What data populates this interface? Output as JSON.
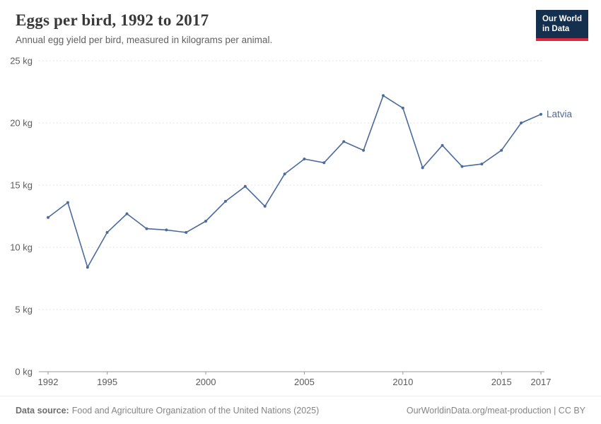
{
  "header": {
    "title": "Eggs per bird, 1992 to 2017",
    "subtitle": "Annual egg yield per bird, measured in kilograms per animal.",
    "logo_line1": "Our World",
    "logo_line2": "in Data"
  },
  "chart_data": {
    "type": "line",
    "title": "Eggs per bird, 1992 to 2017",
    "subtitle": "Annual egg yield per bird, measured in kilograms per animal.",
    "x": [
      1992,
      1993,
      1994,
      1995,
      1996,
      1997,
      1998,
      1999,
      2000,
      2001,
      2002,
      2003,
      2004,
      2005,
      2006,
      2007,
      2008,
      2009,
      2010,
      2011,
      2012,
      2013,
      2014,
      2015,
      2016,
      2017
    ],
    "series": [
      {
        "name": "Latvia",
        "color": "#4c6a9c",
        "values": [
          12.4,
          13.6,
          8.4,
          11.2,
          12.7,
          11.5,
          11.4,
          11.2,
          12.1,
          13.7,
          14.9,
          13.3,
          15.9,
          17.1,
          16.8,
          18.5,
          17.8,
          22.2,
          21.2,
          16.4,
          18.2,
          16.5,
          16.7,
          17.8,
          20.0,
          20.7
        ]
      }
    ],
    "xlim": [
      1992,
      2017
    ],
    "ylim": [
      0,
      25
    ],
    "x_ticks": [
      1992,
      1995,
      2000,
      2005,
      2010,
      2015,
      2017
    ],
    "y_ticks": [
      0,
      5,
      10,
      15,
      20,
      25
    ],
    "y_tick_labels": [
      "0 kg",
      "5 kg",
      "10 kg",
      "15 kg",
      "20 kg",
      "25 kg"
    ],
    "grid": "horizontal-dotted",
    "legend_position": "end-of-line",
    "axis_color": "#999999",
    "gridline_color": "#dcdcdc",
    "tick_label_color": "#5b5b5b"
  },
  "footer": {
    "source_label": "Data source:",
    "source_text": "Food and Agriculture Organization of the United Nations (2025)",
    "link_text": "OurWorldinData.org/meat-production | CC BY"
  }
}
